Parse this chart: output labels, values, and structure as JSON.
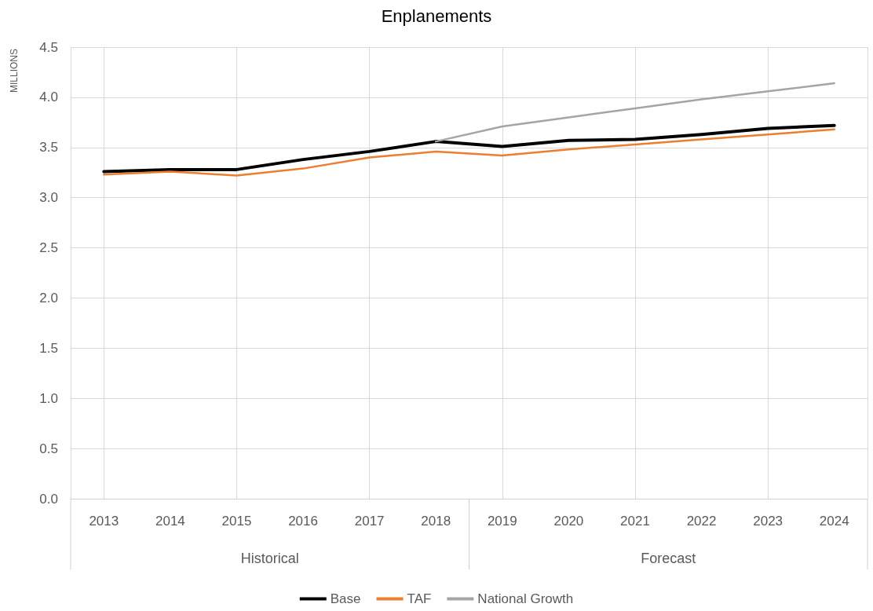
{
  "chart_data": {
    "type": "line",
    "title": "Enplanements",
    "ylabel": "MILLIONS",
    "categories": [
      "2013",
      "2014",
      "2015",
      "2016",
      "2017",
      "2018",
      "2019",
      "2020",
      "2021",
      "2022",
      "2023",
      "2024"
    ],
    "series": [
      {
        "name": "Base",
        "color": "#000000",
        "values": [
          3.26,
          3.28,
          3.28,
          3.38,
          3.46,
          3.56,
          3.51,
          3.57,
          3.58,
          3.63,
          3.69,
          3.72
        ]
      },
      {
        "name": "TAF",
        "color": "#ed7d31",
        "values": [
          3.23,
          3.26,
          3.22,
          3.29,
          3.4,
          3.46,
          3.42,
          3.48,
          3.53,
          3.58,
          3.63,
          3.68
        ]
      },
      {
        "name": "National Growth",
        "color": "#a5a5a5",
        "values": [
          null,
          null,
          null,
          null,
          null,
          3.56,
          3.71,
          3.8,
          3.89,
          3.98,
          4.06,
          4.14
        ]
      }
    ],
    "ylim": [
      0,
      4.5
    ],
    "yticks": [
      {
        "value": 0,
        "label": "0.0"
      },
      0.5,
      {
        "value": 1,
        "label": "1.0"
      },
      1.5,
      {
        "value": 2,
        "label": "2.0"
      },
      2.5,
      {
        "value": 3,
        "label": "3.0"
      },
      3.5,
      {
        "value": 4,
        "label": "4.0"
      },
      4.5
    ],
    "annotations": [
      "Historical",
      "Forecast"
    ],
    "grid": true,
    "legend": "bottom",
    "marker": "none",
    "line_style": "solid"
  }
}
